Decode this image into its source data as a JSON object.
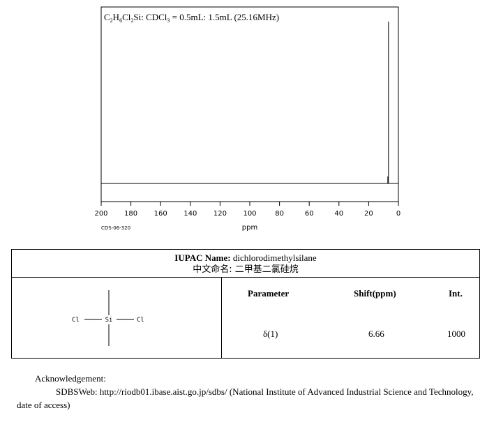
{
  "chart_data": {
    "type": "line",
    "title": "C2H6Cl2Si: CDCl3 = 0.5mL: 1.5mL (25.16MHz)",
    "title_parts": {
      "c": "C",
      "c_sub": "2",
      "h": "H",
      "h_sub": "6",
      "cl": "Cl",
      "cl_sub": "2",
      "rest1": "Si: CDCl",
      "rest1_sub": "3",
      "rest2": " = 0.5mL: 1.5mL (25.16MHz)"
    },
    "xlabel": "ppm",
    "x_reversed": true,
    "xlim": [
      200,
      0
    ],
    "x_ticks": [
      200,
      180,
      160,
      140,
      120,
      100,
      80,
      60,
      40,
      20,
      0
    ],
    "peaks": [
      {
        "shift": 6.66,
        "intensity": 1000
      }
    ],
    "grid": false,
    "code": "CDS-06-320"
  },
  "table": {
    "iupac_label": "IUPAC Name:",
    "iupac_value": "dichlorodimethylsilane",
    "cn_label": "中文命名:",
    "cn_value": "二甲基二氯硅烷",
    "headers": {
      "parameter": "Parameter",
      "shift": "Shift(ppm)",
      "int": "Int."
    },
    "rows": [
      {
        "parameter": "δ(1)",
        "shift": "6.66",
        "int": "1000"
      }
    ]
  },
  "structure": {
    "center": "Si",
    "left": "Cl",
    "right": "Cl"
  },
  "acknowledgement": {
    "title": "Acknowledgement:",
    "body": "SDBSWeb: http://riodb01.ibase.aist.go.jp/sdbs/ (National Institute of Advanced Industrial Science and Technology, date of access)"
  }
}
